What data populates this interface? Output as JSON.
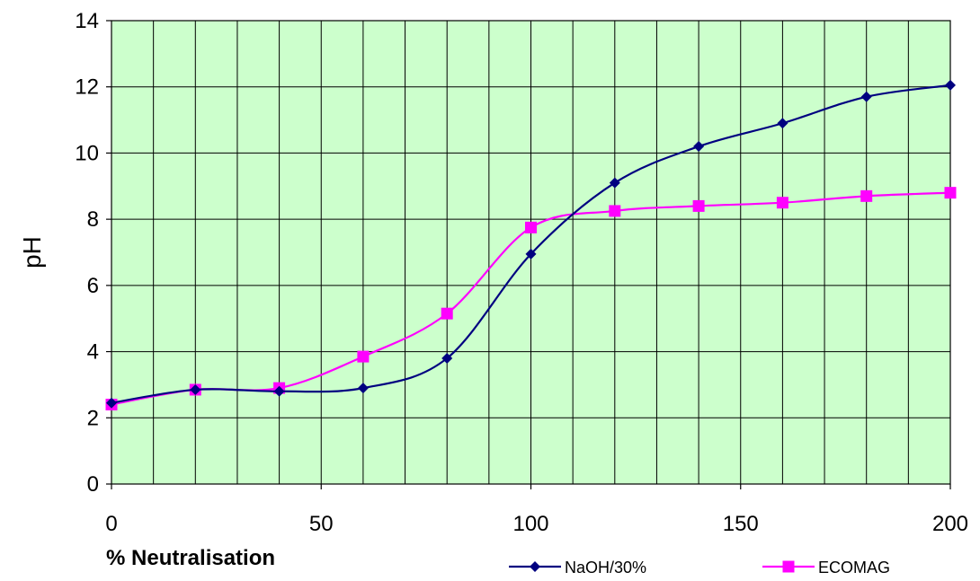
{
  "chart_data": {
    "type": "line",
    "title": "",
    "xlabel": "% Neutralisation",
    "ylabel": "pH",
    "xlim": [
      0,
      200
    ],
    "ylim": [
      0,
      14
    ],
    "xticks": [
      0,
      50,
      100,
      150,
      200
    ],
    "yticks": [
      0,
      2,
      4,
      6,
      8,
      10,
      12,
      14
    ],
    "x_minor_grid_step": 10,
    "grid": true,
    "plot_background": "#ccffcc",
    "legend_position": "bottom-right",
    "smoothed": true,
    "series": [
      {
        "name": "NaOH/30%",
        "marker": "diamond",
        "color": "#000080",
        "x": [
          0,
          20,
          40,
          60,
          80,
          100,
          120,
          140,
          160,
          180,
          200
        ],
        "y": [
          2.45,
          2.85,
          2.8,
          2.9,
          3.8,
          6.95,
          9.1,
          10.2,
          10.9,
          11.7,
          12.05
        ]
      },
      {
        "name": "ECOMAG",
        "marker": "square",
        "color": "#ff00ff",
        "x": [
          0,
          20,
          40,
          60,
          80,
          100,
          120,
          140,
          160,
          180,
          200
        ],
        "y": [
          2.4,
          2.85,
          2.9,
          3.85,
          5.15,
          7.75,
          8.25,
          8.4,
          8.5,
          8.7,
          8.8
        ]
      }
    ]
  }
}
